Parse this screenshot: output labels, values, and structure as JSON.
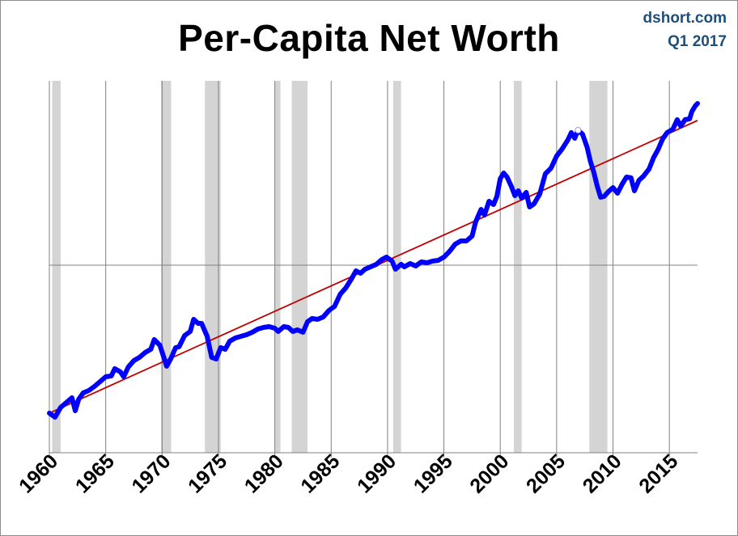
{
  "chart_data": {
    "type": "line",
    "title": "Per-Capita Net Worth",
    "source": "dshort.com",
    "period": "Q1 2017",
    "xlim": [
      1960,
      2017.5
    ],
    "x_ticks": [
      1960,
      1965,
      1970,
      1975,
      1980,
      1985,
      1990,
      1995,
      2000,
      2005,
      2010,
      2015
    ],
    "y_axis_labels": "none",
    "grid": "vertical every 5 years, one horizontal line",
    "recessions": [
      [
        1960.25,
        1961.0
      ],
      [
        1969.9,
        1970.8
      ],
      [
        1973.8,
        1975.2
      ],
      [
        1980.0,
        1980.5
      ],
      [
        1981.5,
        1982.9
      ],
      [
        1990.5,
        1991.2
      ],
      [
        2001.2,
        2001.9
      ],
      [
        2007.9,
        2009.5
      ]
    ],
    "colors": {
      "series": "#0000ff",
      "trend": "#c00000",
      "recession": "#d4d4d4",
      "source_text": "#1f4e79"
    },
    "series": [
      {
        "values": [
          [
            1960.0,
            511
          ],
          [
            1960.5,
            516
          ],
          [
            1961.0,
            504
          ],
          [
            1961.5,
            498
          ],
          [
            1962.0,
            492
          ],
          [
            1962.3,
            508
          ],
          [
            1962.6,
            494
          ],
          [
            1963.0,
            486
          ],
          [
            1963.5,
            483
          ],
          [
            1964.0,
            478
          ],
          [
            1964.5,
            472
          ],
          [
            1965.0,
            466
          ],
          [
            1965.5,
            465
          ],
          [
            1965.8,
            456
          ],
          [
            1966.3,
            460
          ],
          [
            1966.6,
            466
          ],
          [
            1967.0,
            454
          ],
          [
            1967.5,
            446
          ],
          [
            1968.0,
            442
          ],
          [
            1968.5,
            436
          ],
          [
            1969.0,
            432
          ],
          [
            1969.3,
            420
          ],
          [
            1969.8,
            427
          ],
          [
            1970.2,
            444
          ],
          [
            1970.4,
            453
          ],
          [
            1970.8,
            443
          ],
          [
            1971.2,
            430
          ],
          [
            1971.5,
            429
          ],
          [
            1972.0,
            415
          ],
          [
            1972.5,
            410
          ],
          [
            1972.8,
            395
          ],
          [
            1973.2,
            400
          ],
          [
            1973.5,
            400
          ],
          [
            1974.0,
            416
          ],
          [
            1974.4,
            442
          ],
          [
            1974.8,
            444
          ],
          [
            1975.2,
            430
          ],
          [
            1975.6,
            432
          ],
          [
            1976.0,
            422
          ],
          [
            1976.5,
            418
          ],
          [
            1977.0,
            416
          ],
          [
            1977.5,
            414
          ],
          [
            1978.0,
            411
          ],
          [
            1978.5,
            407
          ],
          [
            1979.0,
            405
          ],
          [
            1979.5,
            404
          ],
          [
            1980.0,
            406
          ],
          [
            1980.3,
            410
          ],
          [
            1980.8,
            404
          ],
          [
            1981.2,
            405
          ],
          [
            1981.6,
            410
          ],
          [
            1982.0,
            408
          ],
          [
            1982.5,
            411
          ],
          [
            1982.9,
            398
          ],
          [
            1983.3,
            394
          ],
          [
            1983.8,
            395
          ],
          [
            1984.3,
            392
          ],
          [
            1984.8,
            384
          ],
          [
            1985.3,
            379
          ],
          [
            1985.8,
            364
          ],
          [
            1986.3,
            356
          ],
          [
            1986.8,
            345
          ],
          [
            1987.2,
            335
          ],
          [
            1987.6,
            338
          ],
          [
            1988.0,
            333
          ],
          [
            1988.5,
            330
          ],
          [
            1989.0,
            327
          ],
          [
            1989.5,
            321
          ],
          [
            1989.9,
            318
          ],
          [
            1990.4,
            323
          ],
          [
            1990.7,
            333
          ],
          [
            1991.2,
            327
          ],
          [
            1991.5,
            330
          ],
          [
            1992.0,
            326
          ],
          [
            1992.5,
            329
          ],
          [
            1993.0,
            324
          ],
          [
            1993.5,
            325
          ],
          [
            1994.0,
            323
          ],
          [
            1994.5,
            322
          ],
          [
            1995.0,
            318
          ],
          [
            1995.5,
            311
          ],
          [
            1996.0,
            302
          ],
          [
            1996.5,
            298
          ],
          [
            1997.0,
            298
          ],
          [
            1997.5,
            292
          ],
          [
            1997.8,
            275
          ],
          [
            1998.3,
            259
          ],
          [
            1998.6,
            266
          ],
          [
            1999.0,
            249
          ],
          [
            1999.4,
            253
          ],
          [
            1999.7,
            243
          ],
          [
            2000.0,
            221
          ],
          [
            2000.3,
            214
          ],
          [
            2000.6,
            219
          ],
          [
            2001.0,
            231
          ],
          [
            2001.3,
            242
          ],
          [
            2001.6,
            236
          ],
          [
            2001.9,
            245
          ],
          [
            2002.3,
            238
          ],
          [
            2002.6,
            256
          ],
          [
            2003.0,
            252
          ],
          [
            2003.5,
            240
          ],
          [
            2004.0,
            215
          ],
          [
            2004.5,
            208
          ],
          [
            2005.0,
            193
          ],
          [
            2005.5,
            184
          ],
          [
            2006.0,
            173
          ],
          [
            2006.3,
            164
          ],
          [
            2006.6,
            171
          ],
          [
            2006.9,
            161
          ],
          [
            2007.3,
            166
          ],
          [
            2007.7,
            182
          ],
          [
            2008.0,
            200
          ],
          [
            2008.3,
            213
          ],
          [
            2008.6,
            230
          ],
          [
            2008.9,
            244
          ],
          [
            2009.2,
            243
          ],
          [
            2009.6,
            237
          ],
          [
            2010.0,
            232
          ],
          [
            2010.4,
            239
          ],
          [
            2010.8,
            228
          ],
          [
            2011.2,
            219
          ],
          [
            2011.6,
            220
          ],
          [
            2011.9,
            236
          ],
          [
            2012.3,
            223
          ],
          [
            2012.7,
            218
          ],
          [
            2013.2,
            209
          ],
          [
            2013.6,
            195
          ],
          [
            2014.0,
            185
          ],
          [
            2014.4,
            172
          ],
          [
            2014.8,
            164
          ],
          [
            2015.3,
            160
          ],
          [
            2015.7,
            148
          ],
          [
            2016.0,
            156
          ],
          [
            2016.4,
            148
          ],
          [
            2016.8,
            147
          ],
          [
            2017.0,
            138
          ],
          [
            2017.3,
            131
          ],
          [
            2017.5,
            128
          ]
        ]
      }
    ],
    "trend_line": [
      [
        1960.0,
        511
      ],
      [
        2017.5,
        149
      ]
    ]
  }
}
